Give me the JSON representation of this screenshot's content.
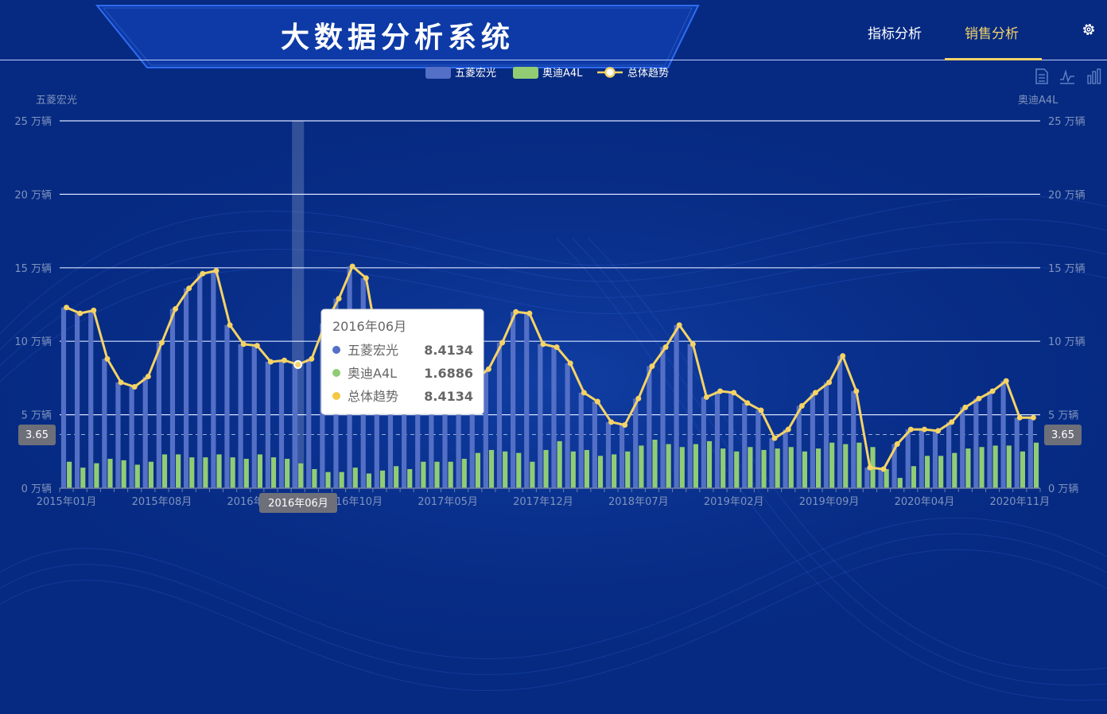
{
  "header": {
    "title": "大数据分析系统",
    "tabs": [
      {
        "label": "指标分析",
        "active": false
      },
      {
        "label": "销售分析",
        "active": true
      }
    ],
    "settings_icon": "gear-icon"
  },
  "toolbox": [
    "data-view-icon",
    "line-chart-icon",
    "bar-chart-icon"
  ],
  "colors": {
    "background": "#062a82",
    "series1": "#5470c6",
    "series2": "#91cc75",
    "trend": "#f5d365",
    "accent": "#f3d36b"
  },
  "chart_data": {
    "type": "bar",
    "units": "万辆",
    "y_axis_left_name": "五菱宏光",
    "y_axis_right_name": "奥迪A4L",
    "ylim": [
      0,
      25
    ],
    "yticks": [
      "0 万辆",
      "5 万辆",
      "10 万辆",
      "15 万辆",
      "20 万辆",
      "25 万辆"
    ],
    "x_tick_labels": [
      "2015年01月",
      "2015年08月",
      "2016年03月",
      "2016年10月",
      "2017年05月",
      "2017年12月",
      "2018年07月",
      "2019年02月",
      "2019年09月",
      "2020年04月",
      "2020年11月"
    ],
    "legend": [
      "五菱宏光",
      "奥迪A4L",
      "总体趋势"
    ],
    "legend_position": "top-center",
    "grid": true,
    "categories": [
      "2015年01月",
      "2015年02月",
      "2015年03月",
      "2015年04月",
      "2015年05月",
      "2015年06月",
      "2015年07月",
      "2015年08月",
      "2015年09月",
      "2015年10月",
      "2015年11月",
      "2015年12月",
      "2016年01月",
      "2016年02月",
      "2016年03月",
      "2016年04月",
      "2016年05月",
      "2016年06月",
      "2016年07月",
      "2016年08月",
      "2016年09月",
      "2016年10月",
      "2016年11月",
      "2016年12月",
      "2017年01月",
      "2017年02月",
      "2017年03月",
      "2017年04月",
      "2017年05月",
      "2017年06月",
      "2017年07月",
      "2017年08月",
      "2017年09月",
      "2017年10月",
      "2017年11月",
      "2017年12月",
      "2018年01月",
      "2018年02月",
      "2018年03月",
      "2018年04月",
      "2018年05月",
      "2018年06月",
      "2018年07月",
      "2018年08月",
      "2018年09月",
      "2018年10月",
      "2018年11月",
      "2018年12月",
      "2019年01月",
      "2019年02月",
      "2019年03月",
      "2019年04月",
      "2019年05月",
      "2019年06月",
      "2019年07月",
      "2019年08月",
      "2019年09月",
      "2019年10月",
      "2019年11月",
      "2019年12月",
      "2020年01月",
      "2020年02月",
      "2020年03月",
      "2020年04月",
      "2020年05月",
      "2020年06月",
      "2020年07月",
      "2020年08月",
      "2020年09月",
      "2020年10月",
      "2020年11月",
      "2020年12月"
    ],
    "series": [
      {
        "name": "五菱宏光",
        "type": "bar",
        "values": [
          12.3,
          11.9,
          12.1,
          8.8,
          7.2,
          6.9,
          7.6,
          9.9,
          12.2,
          13.6,
          14.6,
          14.8,
          11.1,
          9.8,
          9.7,
          8.6,
          8.7,
          8.4134,
          8.8,
          11.2,
          12.9,
          15.1,
          14.3,
          9.1,
          8.5,
          8.2,
          8.0,
          7.9,
          7.4,
          7.4,
          7.4,
          8.1,
          9.9,
          12.0,
          11.9,
          9.8,
          9.6,
          8.5,
          6.5,
          5.9,
          4.5,
          4.3,
          6.1,
          8.3,
          9.6,
          11.1,
          9.8,
          6.2,
          6.6,
          6.5,
          5.8,
          5.3,
          3.4,
          4.0,
          5.6,
          6.5,
          7.2,
          9.0,
          6.6,
          1.4,
          1.3,
          3.0,
          4.0,
          4.0,
          3.9,
          4.5,
          5.5,
          6.1,
          6.6,
          7.3,
          4.8,
          4.8
        ]
      },
      {
        "name": "奥迪A4L",
        "type": "bar",
        "values": [
          1.8,
          1.4,
          1.7,
          2.0,
          1.9,
          1.6,
          1.8,
          2.3,
          2.3,
          2.1,
          2.1,
          2.3,
          2.1,
          2.0,
          2.3,
          2.1,
          2.0,
          1.6886,
          1.3,
          1.1,
          1.1,
          1.4,
          1.0,
          1.2,
          1.5,
          1.3,
          1.8,
          1.8,
          1.8,
          2.0,
          2.4,
          2.6,
          2.5,
          2.4,
          1.8,
          2.6,
          3.2,
          2.5,
          2.6,
          2.2,
          2.3,
          2.5,
          2.9,
          3.3,
          3.0,
          2.8,
          3.0,
          3.2,
          2.7,
          2.5,
          2.8,
          2.6,
          2.7,
          2.8,
          2.5,
          2.7,
          3.1,
          3.0,
          3.1,
          2.8,
          1.3,
          0.7,
          1.5,
          2.2,
          2.2,
          2.4,
          2.7,
          2.8,
          2.9,
          2.9,
          2.5,
          3.1
        ]
      },
      {
        "name": "总体趋势",
        "type": "line",
        "values": [
          12.3,
          11.9,
          12.1,
          8.8,
          7.2,
          6.9,
          7.6,
          9.9,
          12.2,
          13.6,
          14.6,
          14.8,
          11.1,
          9.8,
          9.7,
          8.6,
          8.7,
          8.4134,
          8.8,
          11.2,
          12.9,
          15.1,
          14.3,
          9.1,
          8.5,
          8.2,
          8.0,
          7.9,
          7.4,
          7.4,
          7.4,
          8.1,
          9.9,
          12.0,
          11.9,
          9.8,
          9.6,
          8.5,
          6.5,
          5.9,
          4.5,
          4.3,
          6.1,
          8.3,
          9.6,
          11.1,
          9.8,
          6.2,
          6.6,
          6.5,
          5.8,
          5.3,
          3.4,
          4.0,
          5.6,
          6.5,
          7.2,
          9.0,
          6.6,
          1.4,
          1.3,
          3.0,
          4.0,
          4.0,
          3.9,
          4.5,
          5.5,
          6.1,
          6.6,
          7.3,
          4.8,
          4.8
        ]
      }
    ],
    "axis_pointer": {
      "index": 17,
      "label": "2016年06月",
      "y_value_label": "3.65"
    },
    "tooltip": {
      "title": "2016年06月",
      "rows": [
        {
          "name": "五菱宏光",
          "value": "8.4134",
          "color": "#5470c6"
        },
        {
          "name": "奥迪A4L",
          "value": "1.6886",
          "color": "#91cc75"
        },
        {
          "name": "总体趋势",
          "value": "8.4134",
          "color": "#f5c842"
        }
      ]
    }
  }
}
